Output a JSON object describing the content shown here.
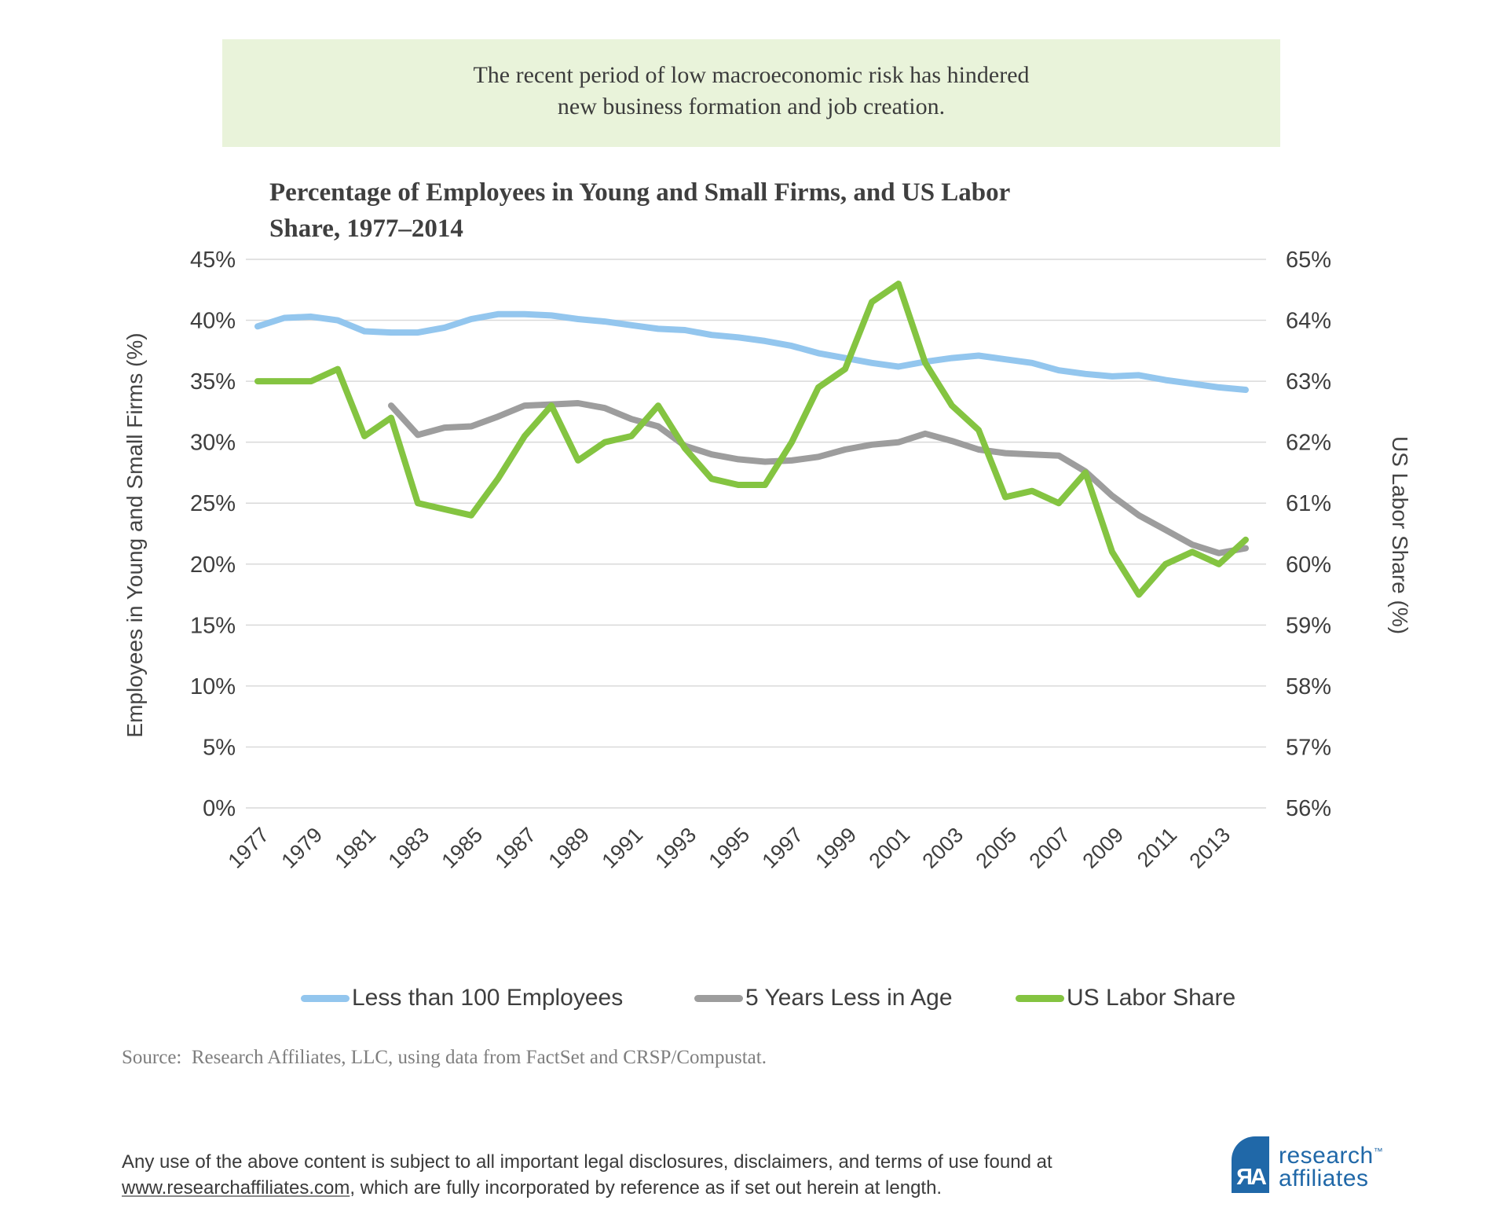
{
  "colors": {
    "callout_bg": "#e9f3da",
    "logo_blue": "#2068a8",
    "gridline": "#d9d9d9",
    "series_blue": "#93c6ee",
    "series_gray": "#9d9d9d",
    "series_green": "#84c441"
  },
  "callout": {
    "line1": "The recent period of low macroeconomic risk has hindered",
    "line2": "new business formation and job creation."
  },
  "chart": {
    "title_line1": "Percentage of Employees in Young and Small Firms, and US Labor",
    "title_line2": "Share, 1977–2014"
  },
  "chart_data": {
    "type": "line",
    "title": "Percentage of Employees in Young and Small Firms, and US Labor Share, 1977–2014",
    "grid": "horizontal",
    "legend_position": "bottom",
    "x": [
      1977,
      1978,
      1979,
      1980,
      1981,
      1982,
      1983,
      1984,
      1985,
      1986,
      1987,
      1988,
      1989,
      1990,
      1991,
      1992,
      1993,
      1994,
      1995,
      1996,
      1997,
      1998,
      1999,
      2000,
      2001,
      2002,
      2003,
      2004,
      2005,
      2006,
      2007,
      2008,
      2009,
      2010,
      2011,
      2012,
      2013,
      2014
    ],
    "x_tick_years": [
      1977,
      1979,
      1981,
      1983,
      1985,
      1987,
      1989,
      1991,
      1993,
      1995,
      1997,
      1999,
      2001,
      2003,
      2005,
      2007,
      2009,
      2011,
      2013
    ],
    "x_tick_labels": [
      "1977",
      "1979",
      "1981",
      "1983",
      "1985",
      "1987",
      "1989",
      "1991",
      "1993",
      "1995",
      "1997",
      "1999",
      "2001",
      "2003",
      "2005",
      "2007",
      "2009",
      "2011",
      "2013"
    ],
    "y_left": {
      "label": "Employees in Young and Small Firms (%)",
      "min": 0,
      "max": 45,
      "tick_step": 5,
      "tick_labels": [
        "0%",
        "5%",
        "10%",
        "15%",
        "20%",
        "25%",
        "30%",
        "35%",
        "40%",
        "45%"
      ]
    },
    "y_right": {
      "label": "US Labor Share (%)",
      "min": 56,
      "max": 65,
      "tick_step": 1,
      "tick_labels": [
        "56%",
        "57%",
        "58%",
        "59%",
        "60%",
        "61%",
        "62%",
        "63%",
        "64%",
        "65%"
      ]
    },
    "series": [
      {
        "name": "Less than 100 Employees",
        "axis": "left",
        "color": "#93c6ee",
        "values": [
          39.5,
          40.2,
          40.3,
          40.0,
          39.1,
          39.0,
          39.0,
          39.4,
          40.1,
          40.5,
          40.5,
          40.4,
          40.1,
          39.9,
          39.6,
          39.3,
          39.2,
          38.8,
          38.6,
          38.3,
          37.9,
          37.3,
          36.9,
          36.5,
          36.2,
          36.6,
          36.9,
          37.1,
          36.8,
          36.5,
          35.9,
          35.6,
          35.4,
          35.5,
          35.1,
          34.8,
          34.5,
          34.3
        ]
      },
      {
        "name": "5 Years Less in Age",
        "axis": "left",
        "color": "#9d9d9d",
        "values": [
          null,
          null,
          null,
          null,
          null,
          33.0,
          30.6,
          31.2,
          31.3,
          32.1,
          33.0,
          33.1,
          33.2,
          32.8,
          31.9,
          31.3,
          29.7,
          29.0,
          28.6,
          28.4,
          28.5,
          28.8,
          29.4,
          29.8,
          30.0,
          30.7,
          30.1,
          29.4,
          29.1,
          29.0,
          28.9,
          27.6,
          25.6,
          24.0,
          22.8,
          21.6,
          20.9,
          21.3
        ]
      },
      {
        "name": "US Labor Share",
        "axis": "right",
        "color": "#84c441",
        "values": [
          63.0,
          63.0,
          63.0,
          63.2,
          62.1,
          62.4,
          61.0,
          60.9,
          60.8,
          61.4,
          62.1,
          62.6,
          61.7,
          62.0,
          62.1,
          62.6,
          61.9,
          61.4,
          61.3,
          61.3,
          62.0,
          62.9,
          63.2,
          64.3,
          64.6,
          63.3,
          62.6,
          62.2,
          61.1,
          61.2,
          61.0,
          61.5,
          60.2,
          59.5,
          60.0,
          60.2,
          60.0,
          60.4
        ]
      }
    ]
  },
  "source": {
    "text": "Source:  Research Affiliates, LLC, using data from FactSet and CRSP/Compustat."
  },
  "footer": {
    "pre_link": "Any use of the above content is subject to all important legal disclosures, disclaimers, and terms of use found at ",
    "link_text": "www.researchaffiliates.com",
    "post_link": ", which are fully incorporated by reference as if set out herein at length."
  },
  "logo": {
    "mark_text": "ЯA",
    "name_line1": "research",
    "trademark": "™",
    "name_line2": "affiliates"
  }
}
